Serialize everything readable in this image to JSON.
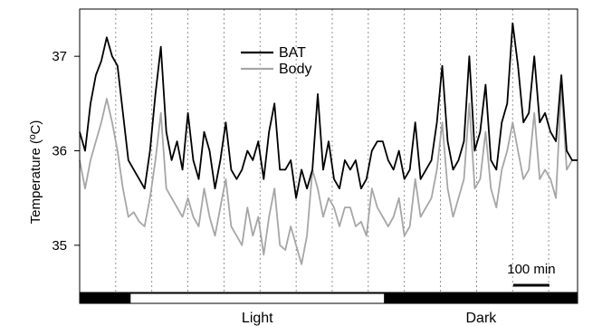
{
  "chart_data": {
    "type": "line",
    "ylabel": "Temperature (ºC)",
    "xlabel": "",
    "ylim": [
      34.5,
      37.5
    ],
    "yticks": [
      35,
      36,
      37
    ],
    "x_units": "min",
    "xlim": [
      0,
      1380
    ],
    "scale_bar": {
      "value": 100,
      "label": "100 min"
    },
    "dotted_vertical_lines_x": [
      100,
      200,
      300,
      400,
      500,
      600,
      700,
      800,
      900,
      1000,
      1100,
      1200,
      1300
    ],
    "light_dark_bar": [
      {
        "label": "",
        "state": "dark",
        "x_start": 0,
        "x_end": 140
      },
      {
        "label": "Light",
        "state": "light",
        "x_start": 140,
        "x_end": 845
      },
      {
        "label": "Dark",
        "state": "dark",
        "x_start": 845,
        "x_end": 1380
      }
    ],
    "legend": {
      "position": "top-center"
    },
    "series": [
      {
        "name": "BAT",
        "color": "#000000",
        "x": [
          0,
          15,
          30,
          45,
          60,
          75,
          90,
          105,
          120,
          135,
          150,
          165,
          180,
          195,
          210,
          225,
          240,
          255,
          270,
          285,
          300,
          315,
          330,
          345,
          360,
          375,
          390,
          405,
          420,
          435,
          450,
          465,
          480,
          495,
          510,
          525,
          540,
          555,
          570,
          585,
          600,
          615,
          630,
          645,
          660,
          675,
          690,
          705,
          720,
          735,
          750,
          765,
          780,
          795,
          810,
          825,
          840,
          855,
          870,
          885,
          900,
          915,
          930,
          945,
          960,
          975,
          990,
          1005,
          1020,
          1035,
          1050,
          1065,
          1080,
          1095,
          1110,
          1125,
          1140,
          1155,
          1170,
          1185,
          1200,
          1215,
          1230,
          1245,
          1260,
          1275,
          1290,
          1305,
          1320,
          1335,
          1350,
          1365,
          1380
        ],
        "values": [
          36.2,
          36.0,
          36.5,
          36.8,
          36.95,
          37.2,
          37.0,
          36.9,
          36.4,
          35.9,
          35.8,
          35.7,
          35.6,
          36.0,
          36.6,
          37.1,
          36.2,
          35.9,
          36.1,
          35.8,
          36.4,
          35.9,
          35.7,
          36.2,
          36.0,
          35.6,
          35.9,
          36.3,
          35.8,
          35.7,
          35.8,
          36.0,
          35.9,
          36.1,
          35.7,
          36.2,
          36.5,
          35.8,
          35.8,
          35.9,
          35.5,
          35.8,
          35.6,
          35.8,
          36.6,
          35.8,
          36.1,
          35.7,
          35.6,
          35.9,
          35.8,
          35.9,
          35.6,
          35.7,
          36.0,
          36.1,
          36.1,
          35.9,
          35.8,
          36.0,
          35.7,
          35.8,
          36.3,
          35.7,
          35.8,
          35.9,
          36.3,
          36.9,
          36.1,
          35.8,
          35.9,
          36.1,
          37.0,
          36.0,
          36.2,
          36.7,
          35.9,
          35.8,
          36.3,
          36.5,
          37.35,
          36.9,
          36.3,
          36.4,
          37.0,
          36.3,
          36.4,
          36.2,
          36.1,
          36.8,
          36.0,
          35.9,
          35.9
        ]
      },
      {
        "name": "Body",
        "color": "#a6a6a6",
        "x": [
          0,
          15,
          30,
          45,
          60,
          75,
          90,
          105,
          120,
          135,
          150,
          165,
          180,
          195,
          210,
          225,
          240,
          255,
          270,
          285,
          300,
          315,
          330,
          345,
          360,
          375,
          390,
          405,
          420,
          435,
          450,
          465,
          480,
          495,
          510,
          525,
          540,
          555,
          570,
          585,
          600,
          615,
          630,
          645,
          660,
          675,
          690,
          705,
          720,
          735,
          750,
          765,
          780,
          795,
          810,
          825,
          840,
          855,
          870,
          885,
          900,
          915,
          930,
          945,
          960,
          975,
          990,
          1005,
          1020,
          1035,
          1050,
          1065,
          1080,
          1095,
          1110,
          1125,
          1140,
          1155,
          1170,
          1185,
          1200,
          1215,
          1230,
          1245,
          1260,
          1275,
          1290,
          1305,
          1320,
          1335,
          1350,
          1365,
          1380
        ],
        "values": [
          35.9,
          35.6,
          35.9,
          36.1,
          36.3,
          36.55,
          36.3,
          36.0,
          35.6,
          35.3,
          35.35,
          35.25,
          35.2,
          35.5,
          35.9,
          36.4,
          35.6,
          35.5,
          35.4,
          35.3,
          35.5,
          35.3,
          35.2,
          35.6,
          35.3,
          35.1,
          35.4,
          35.7,
          35.2,
          35.1,
          35.0,
          35.4,
          35.1,
          35.3,
          34.9,
          35.3,
          35.6,
          35.0,
          34.95,
          35.2,
          35.0,
          34.8,
          35.1,
          35.8,
          35.6,
          35.3,
          35.5,
          35.4,
          35.2,
          35.4,
          35.4,
          35.2,
          35.25,
          35.1,
          35.6,
          35.4,
          35.3,
          35.2,
          35.3,
          35.5,
          35.1,
          35.2,
          35.7,
          35.3,
          35.4,
          35.5,
          35.8,
          36.3,
          35.6,
          35.3,
          35.5,
          35.7,
          36.5,
          35.6,
          35.7,
          36.2,
          35.6,
          35.4,
          35.8,
          36.0,
          36.3,
          36.0,
          35.7,
          35.8,
          36.4,
          35.7,
          35.8,
          35.7,
          35.5,
          36.7,
          35.8,
          35.9,
          35.9
        ]
      }
    ]
  }
}
